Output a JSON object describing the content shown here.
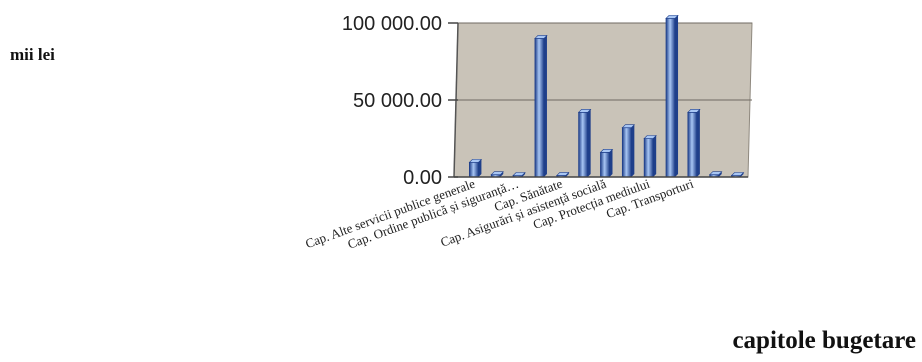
{
  "chart_data": {
    "type": "bar",
    "title": "",
    "ylabel": "mii lei",
    "xlabel": "capitole bugetare",
    "ylim": [
      0,
      100000
    ],
    "y_ticks": [
      {
        "value": 0,
        "label": "0.00"
      },
      {
        "value": 50000,
        "label": "50 000.00"
      },
      {
        "value": 100000,
        "label": "100 000.00"
      }
    ],
    "grid": true,
    "categories": [
      "Cap. Alte servicii publice generale",
      "",
      "Cap. Ordine publică și siguranță…",
      "",
      "Cap. Sănătate",
      "",
      "Cap. Asigurări și asistență socială",
      "",
      "Cap. Protecția mediului",
      "",
      "Cap. Transporturi",
      "",
      ""
    ],
    "values": [
      9500,
      1500,
      900,
      90000,
      1000,
      42000,
      16000,
      32000,
      25000,
      103000,
      42000,
      1500,
      0
    ],
    "colors": {
      "bar": "#4f7fd6",
      "bar_dark": "#1f3f8a",
      "bar_light": "#a8c6f4",
      "plot_bg": "#c9c3b8",
      "grid": "#6f6a62"
    }
  }
}
